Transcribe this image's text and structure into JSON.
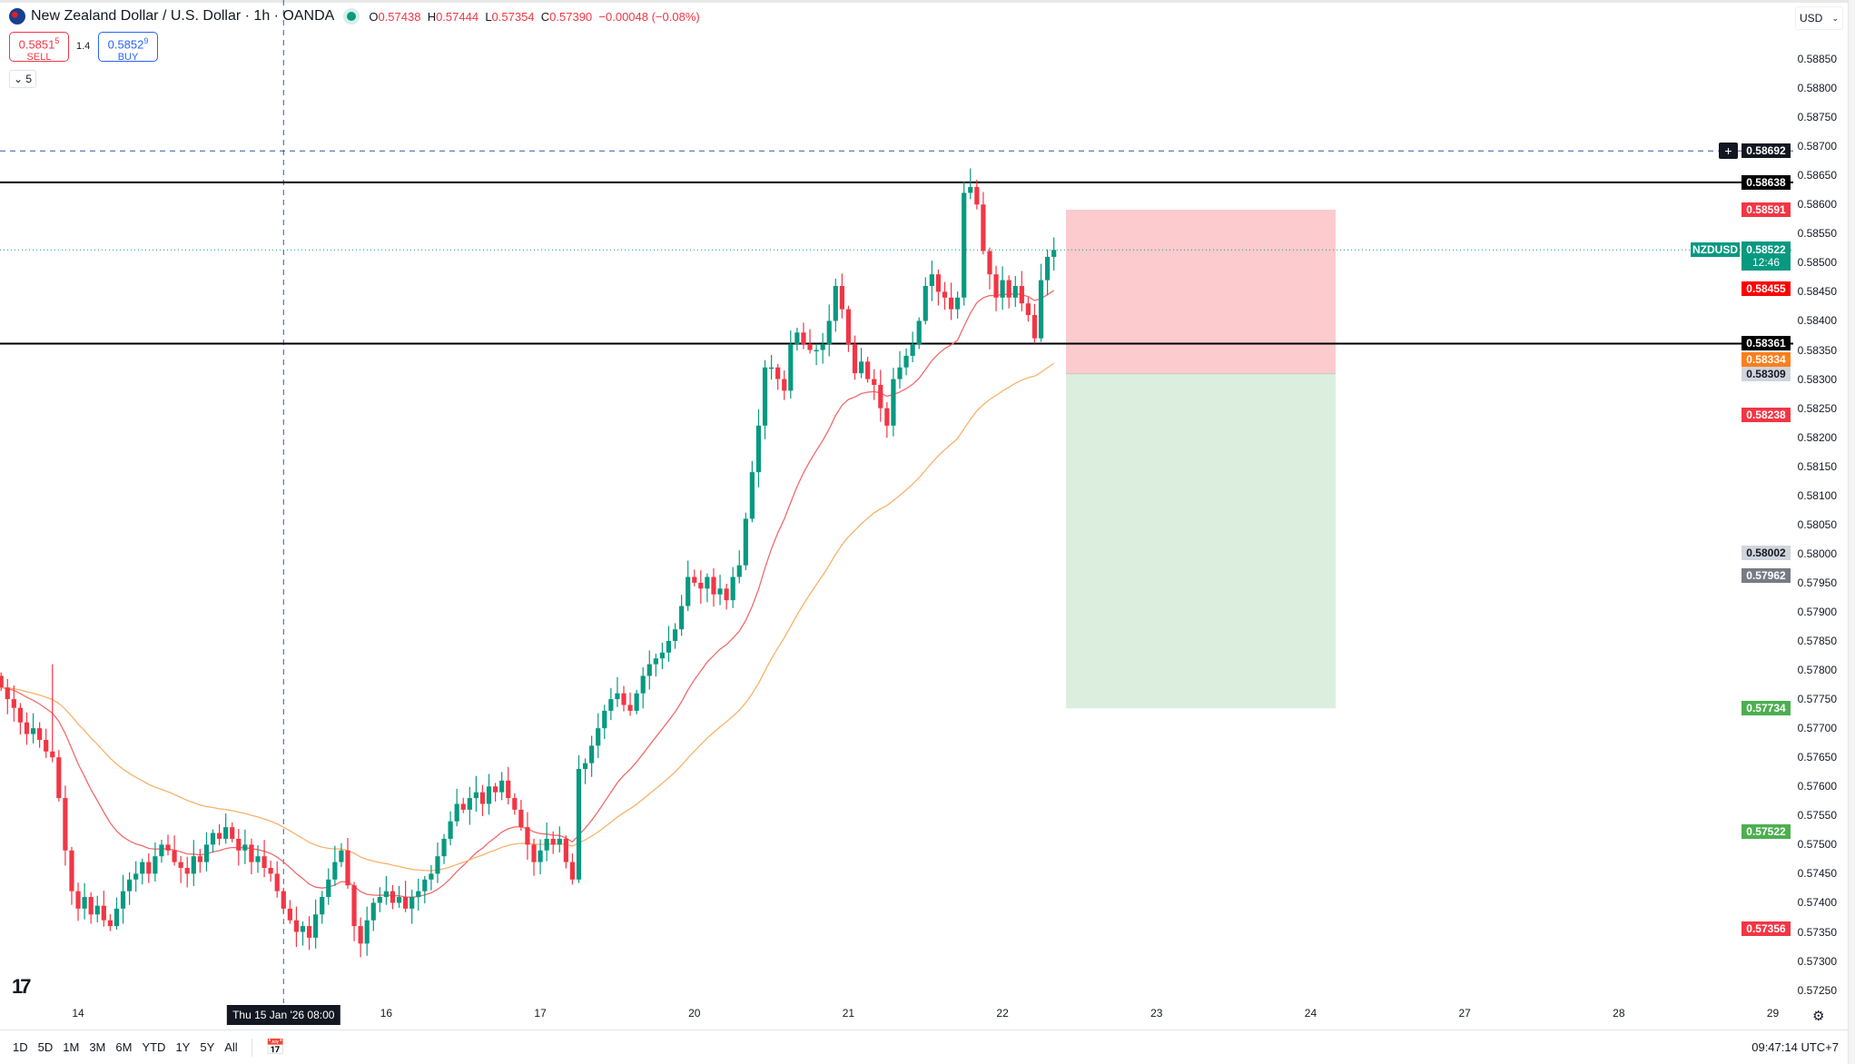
{
  "header": {
    "title": "New Zealand Dollar / U.S. Dollar · 1h · OANDA",
    "ohlc": {
      "o_label": "O",
      "o": "0.57438",
      "h_label": "H",
      "h": "0.57444",
      "l_label": "L",
      "l": "0.57354",
      "c_label": "C",
      "c": "0.57390",
      "change": "−0.00048 (−0.08%)"
    }
  },
  "trade": {
    "sell_price": "0.5851",
    "sell_sup": "5",
    "sell_label": "SELL",
    "spread": "1.4",
    "buy_price": "0.5852",
    "buy_sup": "9",
    "buy_label": "BUY"
  },
  "legend_toggle": {
    "icon": "chevron-down-icon",
    "count": "5"
  },
  "currency": "USD",
  "colors": {
    "up": "#089981",
    "down": "#f23645",
    "ema_fast": "#f26a6a",
    "ema_slow": "#f7b26a",
    "stop_zone": "#fccbcd",
    "target_zone": "#dcefdf",
    "crosshair": "#2a5ea8"
  },
  "chart_data": {
    "type": "candlestick",
    "symbol": "NZDUSD",
    "ylim": [
      0.5722,
      0.5892
    ],
    "y_ticks": [
      "0.58850",
      "0.58800",
      "0.58750",
      "0.58700",
      "0.58650",
      "0.58600",
      "0.58550",
      "0.58500",
      "0.58450",
      "0.58400",
      "0.58350",
      "0.58300",
      "0.58250",
      "0.58200",
      "0.58150",
      "0.58100",
      "0.58050",
      "0.58000",
      "0.57950",
      "0.57900",
      "0.57850",
      "0.57800",
      "0.57750",
      "0.57700",
      "0.57650",
      "0.57600",
      "0.57550",
      "0.57500",
      "0.57450",
      "0.57400",
      "0.57350",
      "0.57300",
      "0.57250"
    ],
    "x_ticks": [
      "14",
      "15",
      "16",
      "17",
      "20",
      "21",
      "22",
      "23",
      "24",
      "27",
      "28",
      "29"
    ],
    "closes": [
      0.5777,
      0.5775,
      0.57735,
      0.5771,
      0.5769,
      0.577,
      0.5768,
      0.5766,
      0.5765,
      0.5758,
      0.5749,
      0.5742,
      0.5739,
      0.5741,
      0.5738,
      0.57395,
      0.5737,
      0.5736,
      0.5739,
      0.5742,
      0.5744,
      0.5745,
      0.5747,
      0.5745,
      0.5748,
      0.575,
      0.5749,
      0.5747,
      0.5746,
      0.5745,
      0.5748,
      0.5747,
      0.575,
      0.5752,
      0.5751,
      0.5753,
      0.5751,
      0.5749,
      0.575,
      0.5747,
      0.5748,
      0.5746,
      0.5745,
      0.5742,
      0.5739,
      0.5737,
      0.5735,
      0.5736,
      0.5734,
      0.5738,
      0.5741,
      0.5744,
      0.5747,
      0.5749,
      0.5743,
      0.5736,
      0.5733,
      0.5737,
      0.574,
      0.5741,
      0.5742,
      0.574,
      0.5741,
      0.5739,
      0.5741,
      0.5742,
      0.5744,
      0.5745,
      0.5748,
      0.5751,
      0.5754,
      0.5757,
      0.5756,
      0.5758,
      0.5759,
      0.5757,
      0.576,
      0.5759,
      0.5761,
      0.5758,
      0.5756,
      0.5753,
      0.575,
      0.5747,
      0.5749,
      0.5751,
      0.575,
      0.5751,
      0.5747,
      0.5744,
      0.5763,
      0.5764,
      0.5767,
      0.577,
      0.5773,
      0.5775,
      0.5776,
      0.5774,
      0.5773,
      0.5776,
      0.5779,
      0.5781,
      0.5782,
      0.5783,
      0.5785,
      0.5787,
      0.5791,
      0.5796,
      0.5795,
      0.5794,
      0.5796,
      0.5793,
      0.5794,
      0.5792,
      0.5796,
      0.5798,
      0.5806,
      0.5814,
      0.5822,
      0.5832,
      0.5832,
      0.583,
      0.5828,
      0.5836,
      0.5838,
      0.5836,
      0.5835,
      0.5835,
      0.5836,
      0.584,
      0.5846,
      0.5842,
      0.5836,
      0.5831,
      0.5833,
      0.583,
      0.5829,
      0.5825,
      0.5822,
      0.583,
      0.5832,
      0.5834,
      0.5836,
      0.584,
      0.5846,
      0.5848,
      0.5845,
      0.5844,
      0.5842,
      0.5844,
      0.5862,
      0.5863,
      0.586,
      0.5852,
      0.5848,
      0.5844,
      0.5847,
      0.5844,
      0.5846,
      0.5843,
      0.5841,
      0.5837,
      0.5847,
      0.5851,
      0.58522
    ],
    "horizontal_lines": [
      {
        "price": 0.58638,
        "style": "solid"
      },
      {
        "price": 0.58361,
        "style": "solid"
      }
    ],
    "position": {
      "type": "short",
      "stop": 0.58591,
      "entry": 0.58309,
      "target": 0.57734
    },
    "crosshair": {
      "price": "0.58692",
      "time": "Thu 15 Jan '26   08:00"
    },
    "last_price": {
      "symbol": "NZDUSD",
      "price": "0.58522",
      "countdown": "12:46"
    },
    "price_tags": [
      {
        "value": "0.58692",
        "bg": "#131722",
        "fg": "#ffffff"
      },
      {
        "value": "0.58638",
        "bg": "#000000",
        "fg": "#ffffff"
      },
      {
        "value": "0.58591",
        "bg": "#f23645",
        "fg": "#ffffff"
      },
      {
        "value": "0.58455",
        "bg": "#ff0000",
        "fg": "#ffffff"
      },
      {
        "value": "0.58361",
        "bg": "#000000",
        "fg": "#ffffff"
      },
      {
        "value": "0.58334",
        "bg": "#ff7f1a",
        "fg": "#ffffff"
      },
      {
        "value": "0.58309",
        "bg": "#d1d4dc",
        "fg": "#131722"
      },
      {
        "value": "0.58238",
        "bg": "#f23645",
        "fg": "#ffffff"
      },
      {
        "value": "0.58002",
        "bg": "#d1d4dc",
        "fg": "#131722"
      },
      {
        "value": "0.57962",
        "bg": "#787b86",
        "fg": "#ffffff"
      },
      {
        "value": "0.57734",
        "bg": "#4caf50",
        "fg": "#ffffff"
      },
      {
        "value": "0.57522",
        "bg": "#4caf50",
        "fg": "#ffffff"
      },
      {
        "value": "0.57356",
        "bg": "#f23645",
        "fg": "#ffffff"
      }
    ]
  },
  "bottom": {
    "ranges": [
      "1D",
      "5D",
      "1M",
      "3M",
      "6M",
      "YTD",
      "1Y",
      "5Y",
      "All"
    ],
    "clock": "09:47:14 UTC+7"
  },
  "logo": "TV"
}
